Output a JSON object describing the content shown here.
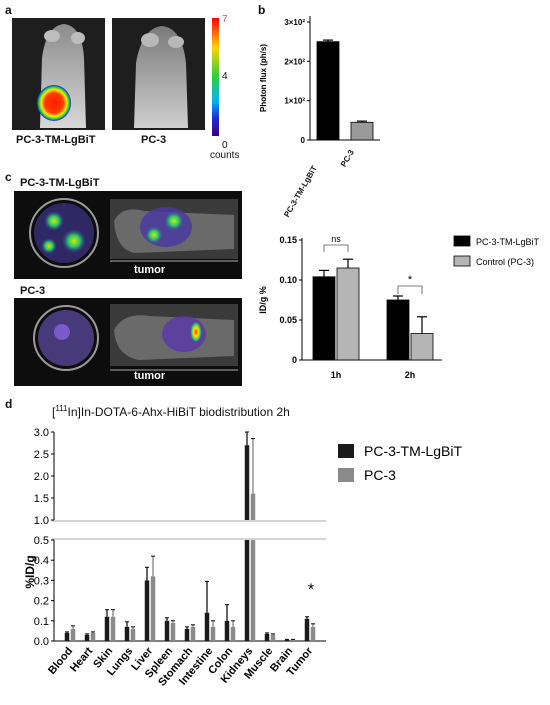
{
  "panel_letters": [
    "a",
    "b",
    "c",
    "d"
  ],
  "panel_a": {
    "left_label": "PC-3-TM-LgBiT",
    "right_label": "PC-3",
    "colorbar": {
      "top": "7",
      "mid": "4",
      "bottom": "0",
      "unit": "counts"
    }
  },
  "panel_c_images": {
    "top_label": "PC-3-TM-LgBiT",
    "bottom_label": "PC-3",
    "tumor_label": "tumor"
  },
  "chart_data": [
    {
      "id": "b",
      "type": "bar",
      "categories": [
        "PC-3-TM-LgBiT",
        "PC-3"
      ],
      "values": [
        250,
        45
      ],
      "errors": [
        4,
        3
      ],
      "colors": [
        "#000000",
        "#9a9a9a"
      ],
      "ylabel": "Photon flux (ph/s)",
      "yticks": [
        {
          "value": 0,
          "label": "0"
        },
        {
          "value": 100,
          "label": "1×10²"
        },
        {
          "value": 200,
          "label": "2×10²"
        },
        {
          "value": 300,
          "label": "3×10²"
        }
      ],
      "ylim": [
        0,
        300
      ]
    },
    {
      "id": "c",
      "type": "bar",
      "categories": [
        "1h",
        "2h"
      ],
      "series": [
        {
          "name": "PC-3-TM-LgBiT",
          "values": [
            0.104,
            0.075
          ],
          "errors": [
            0.008,
            0.005
          ],
          "color": "#000000"
        },
        {
          "name": "Control (PC-3)",
          "values": [
            0.115,
            0.033
          ],
          "errors": [
            0.011,
            0.021
          ],
          "color": "#b5b5b5"
        }
      ],
      "ylabel": "ID/g %",
      "yticks": [
        {
          "value": 0,
          "label": "0"
        },
        {
          "value": 0.05,
          "label": "0.05"
        },
        {
          "value": 0.1,
          "label": "0.10"
        },
        {
          "value": 0.15,
          "label": "0.15"
        }
      ],
      "ylim": [
        0,
        0.15
      ],
      "annotations": [
        "ns",
        "*"
      ],
      "legend_position": "top-right"
    },
    {
      "id": "d",
      "type": "bar",
      "title_pre": "[",
      "title_sup": "111",
      "title_post": "In]In-DOTA-6-Ahx-HiBiT biodistribution 2h",
      "categories": [
        "Blood",
        "Heart",
        "Skin",
        "Lungs",
        "Liver",
        "Spleen",
        "Stomach",
        "Intestine",
        "Colon",
        "Kidneys",
        "Muscle",
        "Brain",
        "Tumor"
      ],
      "series": [
        {
          "name": "PC-3-TM-LgBiT",
          "color": "#1a1a1a",
          "values": [
            0.04,
            0.03,
            0.12,
            0.07,
            0.3,
            0.1,
            0.06,
            0.14,
            0.1,
            2.7,
            0.035,
            0.005,
            0.11
          ],
          "errors": [
            0.005,
            0.005,
            0.035,
            0.025,
            0.065,
            0.015,
            0.01,
            0.155,
            0.08,
            0.3,
            0.005,
            0.003,
            0.01
          ]
        },
        {
          "name": "PC-3",
          "color": "#8a8a8a",
          "values": [
            0.06,
            0.04,
            0.12,
            0.06,
            0.32,
            0.09,
            0.07,
            0.07,
            0.07,
            1.6,
            0.03,
            0.005,
            0.07
          ],
          "errors": [
            0.015,
            0.005,
            0.035,
            0.01,
            0.1,
            0.01,
            0.01,
            0.03,
            0.03,
            1.25,
            0.005,
            0.003,
            0.015
          ]
        }
      ],
      "ylabel": "%ID/g",
      "ylim_lower": [
        0,
        0.5
      ],
      "ylim_upper": [
        1.0,
        3.0
      ],
      "yticks_lower": [
        0,
        0.1,
        0.2,
        0.3,
        0.4,
        0.5
      ],
      "yticks_upper": [
        1.0,
        1.5,
        2.0,
        2.5,
        3.0
      ],
      "annotations": [
        "*"
      ],
      "legend_position": "top-right"
    }
  ]
}
